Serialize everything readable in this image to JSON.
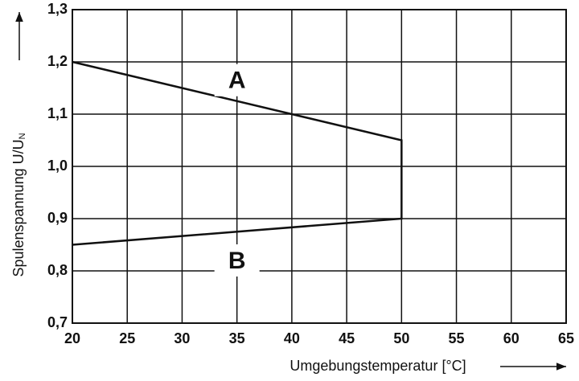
{
  "chart_data": {
    "type": "line",
    "x": [
      20,
      50,
      50,
      20
    ],
    "series": [
      {
        "color": "#111111",
        "values": [
          1.2,
          1.05,
          0.9,
          0.85
        ]
      }
    ],
    "xlim": [
      20,
      65
    ],
    "xticks": [
      20,
      25,
      30,
      35,
      40,
      45,
      50,
      55,
      60,
      65
    ],
    "ylim": [
      0.7,
      1.3
    ],
    "yticks": [
      {
        "value": 0.7,
        "label": "0,7"
      },
      {
        "value": 0.8,
        "label": "0,8"
      },
      {
        "value": 0.9,
        "label": "0,9"
      },
      {
        "value": 1.0,
        "label": "1,0"
      },
      {
        "value": 1.1,
        "label": "1,1"
      },
      {
        "value": 1.2,
        "label": "1,2"
      },
      {
        "value": 1.3,
        "label": "1,3"
      }
    ],
    "xlabel": "Umgebungstemperatur [°C]",
    "ylabel": "Spulenspannung U/U",
    "ylabel_subscript": "N",
    "annotations": [
      "A",
      "B"
    ],
    "grid": true
  }
}
